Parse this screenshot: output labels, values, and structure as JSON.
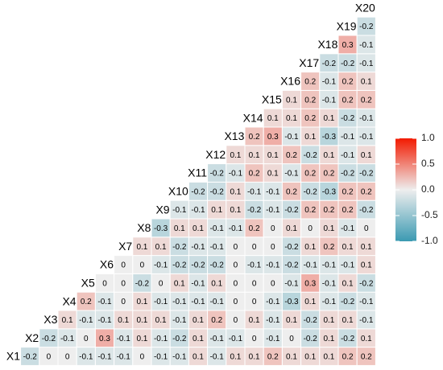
{
  "chart_data": {
    "type": "heatmap",
    "rows": [
      {
        "label": "X1",
        "values": [
          -0.2,
          0,
          0,
          -0.1,
          -0.1,
          -0.1,
          0,
          -0.1,
          -0.1,
          0.1,
          -0.1,
          0.1,
          0.1,
          0.2,
          0.1,
          0.1,
          0.1,
          0.2,
          0.2
        ]
      },
      {
        "label": "X2",
        "values": [
          -0.2,
          -0.1,
          0,
          0.3,
          -0.1,
          0.1,
          -0.1,
          -0.2,
          0.1,
          -0.1,
          -0.1,
          0,
          -0.1,
          0,
          -0.2,
          0.1,
          -0.2,
          0.1
        ]
      },
      {
        "label": "X3",
        "values": [
          0.1,
          -0.1,
          -0.1,
          0.1,
          0.1,
          0.1,
          -0.1,
          0.1,
          0.2,
          0,
          0.1,
          -0.1,
          0.1,
          -0.2,
          0.1,
          0.1,
          -0.1
        ]
      },
      {
        "label": "X4",
        "values": [
          0.2,
          -0.1,
          0,
          0.1,
          -0.1,
          -0.1,
          -0.1,
          -0.1,
          0,
          0,
          -0.1,
          -0.3,
          0.1,
          -0.1,
          -0.2,
          -0.1
        ]
      },
      {
        "label": "X5",
        "values": [
          0,
          0,
          -0.2,
          0,
          0.1,
          -0.1,
          0.1,
          0,
          0,
          0,
          -0.1,
          0.3,
          -0.1,
          0.1,
          -0.2
        ]
      },
      {
        "label": "X6",
        "values": [
          0,
          0,
          -0.1,
          -0.2,
          -0.2,
          -0.2,
          0,
          -0.1,
          -0.1,
          -0.2,
          -0.1,
          -0.1,
          -0.1,
          0.1
        ]
      },
      {
        "label": "X7",
        "values": [
          0.1,
          0.1,
          -0.2,
          -0.1,
          -0.1,
          0,
          0,
          0,
          -0.2,
          0.1,
          0.2,
          0.1,
          0.1
        ]
      },
      {
        "label": "X8",
        "values": [
          -0.3,
          0.1,
          0.1,
          -0.1,
          -0.1,
          0.2,
          0,
          0.1,
          0,
          0.1,
          -0.1,
          0
        ]
      },
      {
        "label": "X9",
        "values": [
          -0.1,
          -0.1,
          0.1,
          0.1,
          -0.2,
          -0.1,
          -0.2,
          0.2,
          0.2,
          0.2,
          -0.2
        ]
      },
      {
        "label": "X10",
        "values": [
          -0.2,
          -0.2,
          0.1,
          -0.1,
          -0.1,
          0.2,
          -0.2,
          -0.3,
          0.2,
          0.2
        ]
      },
      {
        "label": "X11",
        "values": [
          -0.2,
          -0.1,
          0.2,
          0.1,
          -0.1,
          0.2,
          0.2,
          -0.2,
          -0.2
        ]
      },
      {
        "label": "X12",
        "values": [
          0.1,
          0.1,
          0.1,
          0.2,
          -0.2,
          0.1,
          -0.1,
          0.1
        ]
      },
      {
        "label": "X13",
        "values": [
          0.2,
          0.3,
          -0.1,
          0.1,
          -0.3,
          -0.1,
          -0.1
        ]
      },
      {
        "label": "X14",
        "values": [
          0.1,
          0.1,
          0.2,
          0.1,
          -0.2,
          -0.1
        ]
      },
      {
        "label": "X15",
        "values": [
          0.1,
          0.2,
          -0.1,
          0.2,
          0.2
        ]
      },
      {
        "label": "X16",
        "values": [
          0.2,
          -0.1,
          0.2,
          0.1
        ]
      },
      {
        "label": "X17",
        "values": [
          -0.2,
          -0.2,
          -0.1
        ]
      },
      {
        "label": "X18",
        "values": [
          0.3,
          -0.1
        ]
      },
      {
        "label": "X19",
        "values": [
          -0.2
        ]
      },
      {
        "label": "X20",
        "values": []
      }
    ],
    "colors": {
      "low": "#3b9ab2",
      "mid": "#eeeeee",
      "high": "#f21a00"
    },
    "limits": [
      -1,
      1
    ],
    "legend_ticks": [
      {
        "value": 1,
        "label": "1.0"
      },
      {
        "value": 0.5,
        "label": "0.5"
      },
      {
        "value": 0,
        "label": "0.0"
      },
      -0.5,
      {
        "value": -1,
        "label": "-1.0"
      }
    ]
  }
}
